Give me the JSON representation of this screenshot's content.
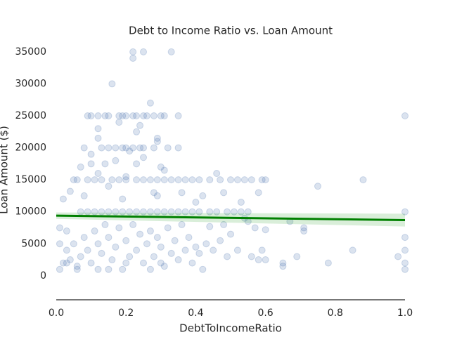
{
  "chart_data": {
    "type": "scatter",
    "title": "Debt to Income Ratio vs. Loan Amount",
    "x_label": "DebtToIncomeRatio",
    "y_label": "Loan Amount ($)",
    "color": "#4c72b0",
    "xlim": [
      0,
      1
    ],
    "ylim": [
      -3750,
      36500
    ],
    "xticks": [
      {
        "value": 0,
        "label": "0.0"
      },
      0.2,
      0.4,
      0.6,
      0.8,
      {
        "value": 1,
        "label": "1.0"
      }
    ],
    "yticks": [
      0,
      5000,
      10000,
      15000,
      20000,
      25000,
      30000,
      35000
    ],
    "x": [
      0.22,
      0.25,
      0.33,
      0.22,
      0.16,
      0.27,
      0.09,
      0.1,
      0.12,
      0.14,
      0.15,
      0.18,
      0.19,
      0.2,
      0.22,
      0.23,
      0.25,
      0.26,
      0.28,
      0.3,
      0.31,
      0.35,
      1.0,
      0.18,
      0.24,
      0.12,
      0.23,
      0.12,
      0.29,
      0.29,
      0.08,
      0.13,
      0.15,
      0.17,
      0.19,
      0.2,
      0.22,
      0.24,
      0.25,
      0.28,
      0.32,
      0.35,
      0.1,
      0.21,
      0.25,
      0.17,
      0.3,
      0.07,
      0.1,
      0.14,
      0.23,
      0.31,
      0.12,
      0.46,
      0.2,
      0.58,
      0.75,
      0.04,
      0.29,
      0.42,
      0.02,
      0.05,
      0.06,
      0.09,
      0.11,
      0.13,
      0.16,
      0.18,
      0.2,
      0.23,
      0.25,
      0.27,
      0.29,
      0.31,
      0.33,
      0.35,
      0.37,
      0.39,
      0.41,
      0.44,
      0.47,
      0.5,
      0.52,
      0.54,
      0.56,
      0.59,
      0.6,
      0.88,
      0.15,
      0.36,
      0.28,
      0.48,
      0.08,
      0.19,
      0.4,
      0.53,
      0.6,
      0.07,
      0.09,
      0.11,
      0.13,
      0.15,
      0.17,
      0.19,
      0.21,
      0.23,
      0.25,
      0.27,
      0.29,
      0.31,
      0.33,
      0.35,
      0.37,
      0.39,
      0.41,
      0.44,
      0.46,
      0.49,
      0.53,
      0.55,
      1.0,
      0.51,
      0.54,
      0.55,
      0.44,
      0.48,
      0.67,
      0.71,
      0.71,
      0.57,
      0.01,
      0.03,
      0.01,
      0.02,
      0.03,
      0.04,
      0.05,
      0.06,
      0.07,
      0.08,
      0.09,
      0.1,
      0.11,
      0.12,
      0.13,
      0.14,
      0.15,
      0.16,
      0.17,
      0.18,
      0.19,
      0.2,
      0.21,
      0.22,
      0.23,
      0.24,
      0.25,
      0.26,
      0.27,
      0.28,
      0.29,
      0.3,
      0.31,
      0.32,
      0.33,
      0.34,
      0.35,
      0.36,
      0.37,
      0.38,
      0.39,
      0.4,
      0.41,
      0.42,
      0.43,
      0.45,
      0.47,
      0.49,
      0.5,
      0.52,
      0.56,
      0.58,
      0.59,
      0.6,
      0.65,
      0.65,
      0.69,
      0.78,
      0.85,
      0.98,
      1.0,
      1.0,
      1.0,
      1.0,
      0.01,
      0.03,
      0.06,
      0.12,
      0.15,
      0.2,
      0.27,
      0.3
    ],
    "values": [
      35000,
      35000,
      35000,
      34000,
      30000,
      27000,
      25000,
      25000,
      25000,
      25000,
      25000,
      25000,
      25000,
      25000,
      25000,
      25000,
      25000,
      25000,
      25000,
      25000,
      25000,
      25000,
      25000,
      24000,
      23500,
      23000,
      22500,
      21500,
      21500,
      21000,
      20000,
      20000,
      20000,
      20000,
      20000,
      20000,
      20000,
      20000,
      20000,
      20000,
      20000,
      20000,
      19000,
      19500,
      18500,
      18000,
      17000,
      17000,
      17500,
      17500,
      17500,
      16500,
      16000,
      16000,
      15500,
      13000,
      14000,
      13200,
      12500,
      12500,
      12000,
      15000,
      15000,
      15000,
      15000,
      15000,
      15000,
      15000,
      15000,
      15000,
      15000,
      15000,
      15000,
      15000,
      15000,
      15000,
      15000,
      15000,
      15000,
      15000,
      15000,
      15000,
      15000,
      15000,
      15000,
      15000,
      15000,
      15000,
      14000,
      13000,
      13000,
      13000,
      12500,
      12000,
      11500,
      11500,
      7200,
      10000,
      10000,
      10000,
      10000,
      10000,
      10000,
      10000,
      10000,
      10000,
      10000,
      10000,
      10000,
      10000,
      10000,
      10000,
      10000,
      10000,
      10000,
      10000,
      10000,
      10000,
      10000,
      10000,
      10000,
      10000,
      9000,
      8500,
      7700,
      8000,
      8500,
      7500,
      7000,
      7500,
      7500,
      7000,
      5000,
      2000,
      4000,
      2500,
      5000,
      1500,
      3000,
      6000,
      4000,
      2000,
      7000,
      5000,
      3500,
      8000,
      6000,
      2500,
      4500,
      7500,
      1000,
      5500,
      3000,
      8000,
      4000,
      6500,
      2000,
      5000,
      7000,
      3000,
      6000,
      4500,
      1500,
      7500,
      3500,
      5500,
      2500,
      8000,
      4000,
      6000,
      2000,
      4500,
      3500,
      1000,
      5000,
      4000,
      5500,
      3000,
      6500,
      4000,
      3000,
      2500,
      4000,
      2500,
      1500,
      2000,
      3000,
      2000,
      4000,
      3000,
      6000,
      4000,
      2000,
      1000,
      1000,
      2000,
      1000,
      1000,
      1000,
      2000,
      1000,
      2000
    ],
    "regression": {
      "color": "#008000",
      "band_color": "#2ca02c",
      "x": [
        0,
        1
      ],
      "values": [
        9400,
        8700
      ],
      "band_lower": [
        8900,
        7700
      ],
      "band_upper": [
        9900,
        9700
      ]
    }
  }
}
